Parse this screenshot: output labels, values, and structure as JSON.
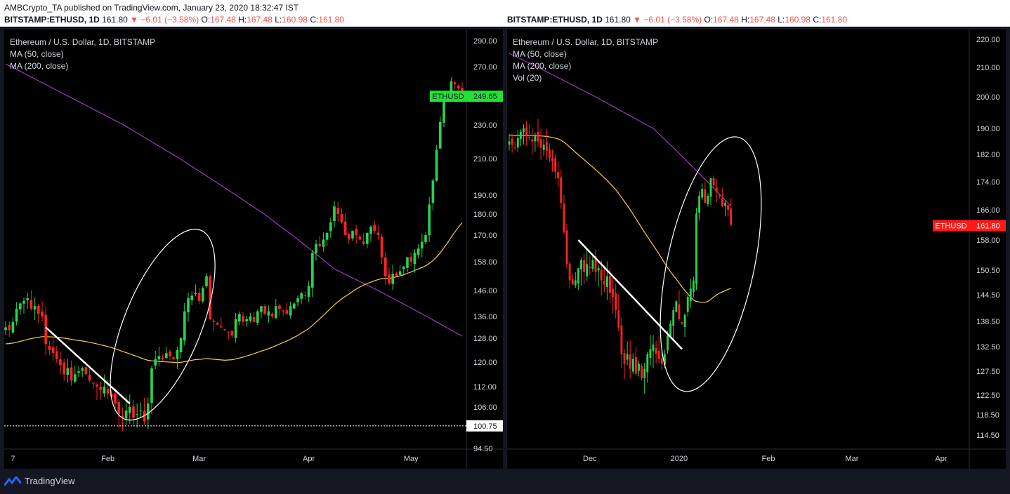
{
  "header": {
    "publisher": "AMBCrypto_TA published on TradingView.com, January 23, 2020 18:32:47 IST",
    "symbol": "BITSTAMP:ETHUSD, 1D",
    "last": "161.80",
    "change": "−6.01 (−3.58%)",
    "o_label": "O:",
    "o": "167.48",
    "h_label": "H:",
    "h": "167.48",
    "l_label": "L:",
    "l": "160.98",
    "c_label": "C:",
    "c": "161.80"
  },
  "footer": {
    "brand": "TradingView"
  },
  "colors": {
    "up": "#26d34f",
    "down": "#ff2222",
    "ma50": "#f5d142",
    "ma200": "#a039b8",
    "vol_up": "#1e5e5a",
    "vol_down": "#7a2b2b"
  },
  "chart_data": [
    {
      "type": "candlestick",
      "title": "Ethereum / U.S. Dollar, 1D, BITSTAMP",
      "legend": [
        "MA (50, close)",
        "MA (200, close)"
      ],
      "price_ticks": [
        290,
        270,
        230,
        210,
        190,
        180,
        170,
        158,
        146,
        136,
        128,
        120,
        112,
        106,
        94.5
      ],
      "price_tick_labels": [
        "290.00",
        "270.00",
        "230.00",
        "210.00",
        "190.00",
        "180.00",
        "170.00",
        "158.00",
        "146.00",
        "136.00",
        "128.00",
        "120.00",
        "112.00",
        "106.00",
        "94.50"
      ],
      "time_labels": [
        "7",
        "Feb",
        "Mar",
        "Apr",
        "May"
      ],
      "time_label_index": [
        2,
        28,
        53,
        83,
        111
      ],
      "price_badge": {
        "label": "ETHUSD",
        "value": "249.65"
      },
      "horizontal_line": {
        "value": "100.75"
      },
      "closes": [
        132,
        131,
        134,
        139,
        141,
        142,
        143,
        139,
        140,
        137,
        136,
        126,
        124,
        123,
        121,
        119,
        116,
        118,
        114,
        116,
        117,
        118,
        116,
        114,
        113,
        112,
        111,
        112,
        110,
        109,
        107,
        104,
        103,
        105,
        106,
        103,
        104,
        105,
        102,
        107,
        118,
        121,
        122,
        121,
        123,
        122,
        121,
        124,
        128,
        138,
        143,
        144,
        145,
        142,
        147,
        152,
        135,
        134,
        133,
        132,
        131,
        130,
        129,
        135,
        137,
        134,
        135,
        136,
        134,
        138,
        140,
        137,
        138,
        136,
        140,
        139,
        138,
        137,
        140,
        141,
        143,
        145,
        144,
        148,
        162,
        166,
        165,
        168,
        171,
        176,
        184,
        180,
        176,
        170,
        168,
        172,
        170,
        168,
        166,
        171,
        174,
        172,
        170,
        160,
        152,
        149,
        153,
        152,
        154,
        156,
        160,
        158,
        162,
        164,
        167,
        170,
        185,
        198,
        215,
        232,
        250,
        252,
        260,
        258,
        255,
        250
      ]
    },
    {
      "type": "candlestick",
      "title": "Ethereum / U.S. Dollar, 1D, BITSTAMP",
      "legend": [
        "MA (50, close)",
        "MA (200, close)",
        "Vol (20)"
      ],
      "price_ticks": [
        220,
        210,
        200,
        190,
        182,
        174,
        166,
        158,
        150.5,
        144.5,
        138.5,
        132.5,
        127.5,
        122.5,
        118.5,
        114.5
      ],
      "price_tick_labels": [
        "220.00",
        "210.00",
        "200.00",
        "190.00",
        "182.00",
        "174.00",
        "166.00",
        "158.00",
        "150.50",
        "144.50",
        "138.50",
        "132.50",
        "127.50",
        "122.50",
        "118.50",
        "114.50"
      ],
      "time_labels": [
        "Dec",
        "2020",
        "Feb",
        "Mar",
        "Apr"
      ],
      "time_label_index": [
        28,
        59,
        90,
        119,
        150
      ],
      "price_badge": {
        "label": "ETHUSD",
        "value": "161.80"
      },
      "closes": [
        186,
        185,
        184,
        187,
        189,
        190,
        188,
        187,
        186,
        188,
        186,
        184,
        185,
        183,
        181,
        180,
        177,
        175,
        168,
        160,
        152,
        148,
        147,
        148,
        151,
        153,
        150,
        152,
        151,
        153,
        150,
        151,
        148,
        147,
        149,
        145,
        144,
        141,
        137,
        131,
        129,
        131,
        128,
        130,
        127,
        129,
        126,
        128,
        131,
        132,
        133,
        131,
        130,
        129,
        131,
        135,
        138,
        141,
        143,
        139,
        138,
        140,
        144,
        146,
        148,
        165,
        170,
        172,
        168,
        170,
        175,
        173,
        171,
        170,
        167,
        168,
        166,
        162
      ]
    }
  ]
}
